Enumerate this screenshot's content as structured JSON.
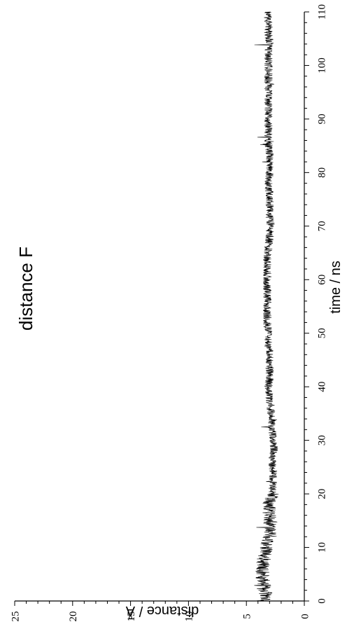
{
  "chart_data": {
    "type": "line",
    "title": "distance F",
    "xlabel": "time / ns",
    "ylabel": "distance / Å",
    "xlim": [
      0,
      110
    ],
    "ylim": [
      0,
      25
    ],
    "x_ticks": [
      "0",
      "10",
      "20",
      "30",
      "40",
      "50",
      "60",
      "70",
      "80",
      "90",
      "100",
      "110"
    ],
    "y_ticks": [
      "0",
      "5",
      "10",
      "15",
      "20",
      "25"
    ],
    "grid": false,
    "orientation": "rotated-90",
    "series": [
      {
        "color": "#000000",
        "x": [
          0,
          2,
          4,
          6,
          8,
          10,
          12,
          14,
          16,
          18,
          20,
          22,
          24,
          26,
          28,
          30,
          32,
          34,
          36,
          38,
          40,
          42,
          44,
          46,
          48,
          50,
          52,
          54,
          56,
          58,
          60,
          62,
          64,
          66,
          68,
          70,
          72,
          74,
          76,
          78,
          80,
          82,
          84,
          86,
          88,
          90,
          92,
          94,
          96,
          98,
          100,
          102,
          104,
          106,
          108,
          110
        ],
        "values": [
          3.3,
          3.4,
          3.6,
          3.6,
          3.5,
          3.3,
          3.0,
          2.9,
          3.0,
          3.1,
          2.8,
          2.7,
          2.7,
          2.8,
          2.6,
          2.7,
          2.8,
          2.8,
          2.9,
          3.0,
          3.1,
          3.0,
          3.0,
          3.0,
          3.1,
          3.1,
          3.2,
          3.2,
          3.2,
          3.2,
          3.2,
          3.2,
          3.2,
          3.1,
          3.0,
          2.9,
          3.0,
          3.0,
          3.0,
          3.1,
          3.0,
          3.0,
          3.0,
          3.1,
          3.1,
          3.1,
          3.1,
          3.1,
          3.1,
          3.1,
          3.1,
          3.1,
          3.0,
          3.1,
          3.1,
          3.2
        ]
      }
    ]
  }
}
